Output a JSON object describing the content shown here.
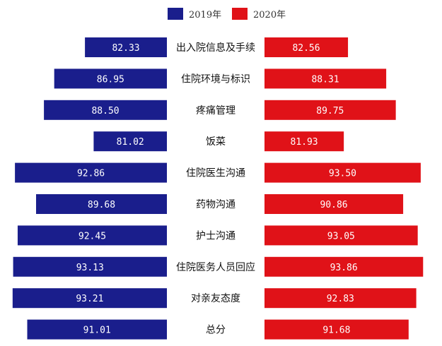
{
  "chart_data": {
    "type": "bar",
    "categories": [
      "出入院信息及手续",
      "住院环境与标识",
      "疼痛管理",
      "饭菜",
      "住院医生沟通",
      "药物沟通",
      "护士沟通",
      "住院医务人员回应",
      "对亲友态度",
      "总分"
    ],
    "series": [
      {
        "name": "2019年",
        "values": [
          82.33,
          86.95,
          88.5,
          81.02,
          92.86,
          89.68,
          92.45,
          93.13,
          93.21,
          91.01
        ],
        "labels": [
          "82.33",
          "86.95",
          "88.50",
          "81.02",
          "92.86",
          "89.68",
          "92.45",
          "93.13",
          "93.21",
          "91.01"
        ],
        "color": "#1a1e8c"
      },
      {
        "name": "2020年",
        "values": [
          82.56,
          88.31,
          89.75,
          81.93,
          93.5,
          90.86,
          93.05,
          93.86,
          92.83,
          91.68
        ],
        "labels": [
          "82.56",
          "88.31",
          "89.75",
          "81.93",
          "93.50",
          "90.86",
          "93.05",
          "93.86",
          "92.83",
          "91.68"
        ],
        "color": "#e01218"
      }
    ],
    "xlim": [
      70,
      95
    ],
    "legend": "top-center",
    "title": "",
    "xlabel": "",
    "ylabel": "",
    "grid": false
  }
}
